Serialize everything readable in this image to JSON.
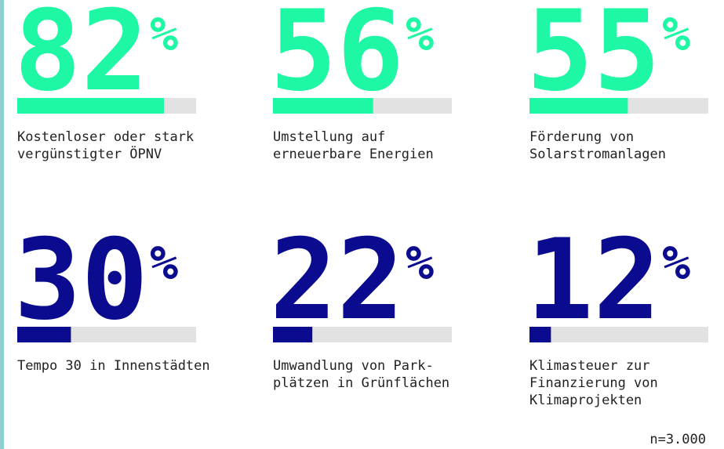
{
  "chart_data": {
    "type": "progress-grid",
    "categories": [
      [
        "Kostenloser oder stark",
        "vergünstigter ÖPNV"
      ],
      [
        "Umstellung auf",
        "erneuerbare Energien"
      ],
      [
        "Förderung von",
        "Solarstromanlagen"
      ],
      [
        "Tempo 30 in Innenstädten"
      ],
      [
        "Umwandlung von Park-",
        "plätzen in Grünflächen"
      ],
      [
        "Klimasteuer zur",
        "Finanzierung von",
        "Klimaprojekten"
      ]
    ],
    "values": [
      82,
      56,
      55,
      30,
      22,
      12
    ],
    "unit": "%",
    "colors": [
      "#1ef7a3",
      "#1ef7a3",
      "#1ef7a3",
      "#0b0b8f",
      "#0b0b8f",
      "#0b0b8f"
    ],
    "xlim": [
      0,
      100
    ],
    "note": "n=3.000"
  }
}
